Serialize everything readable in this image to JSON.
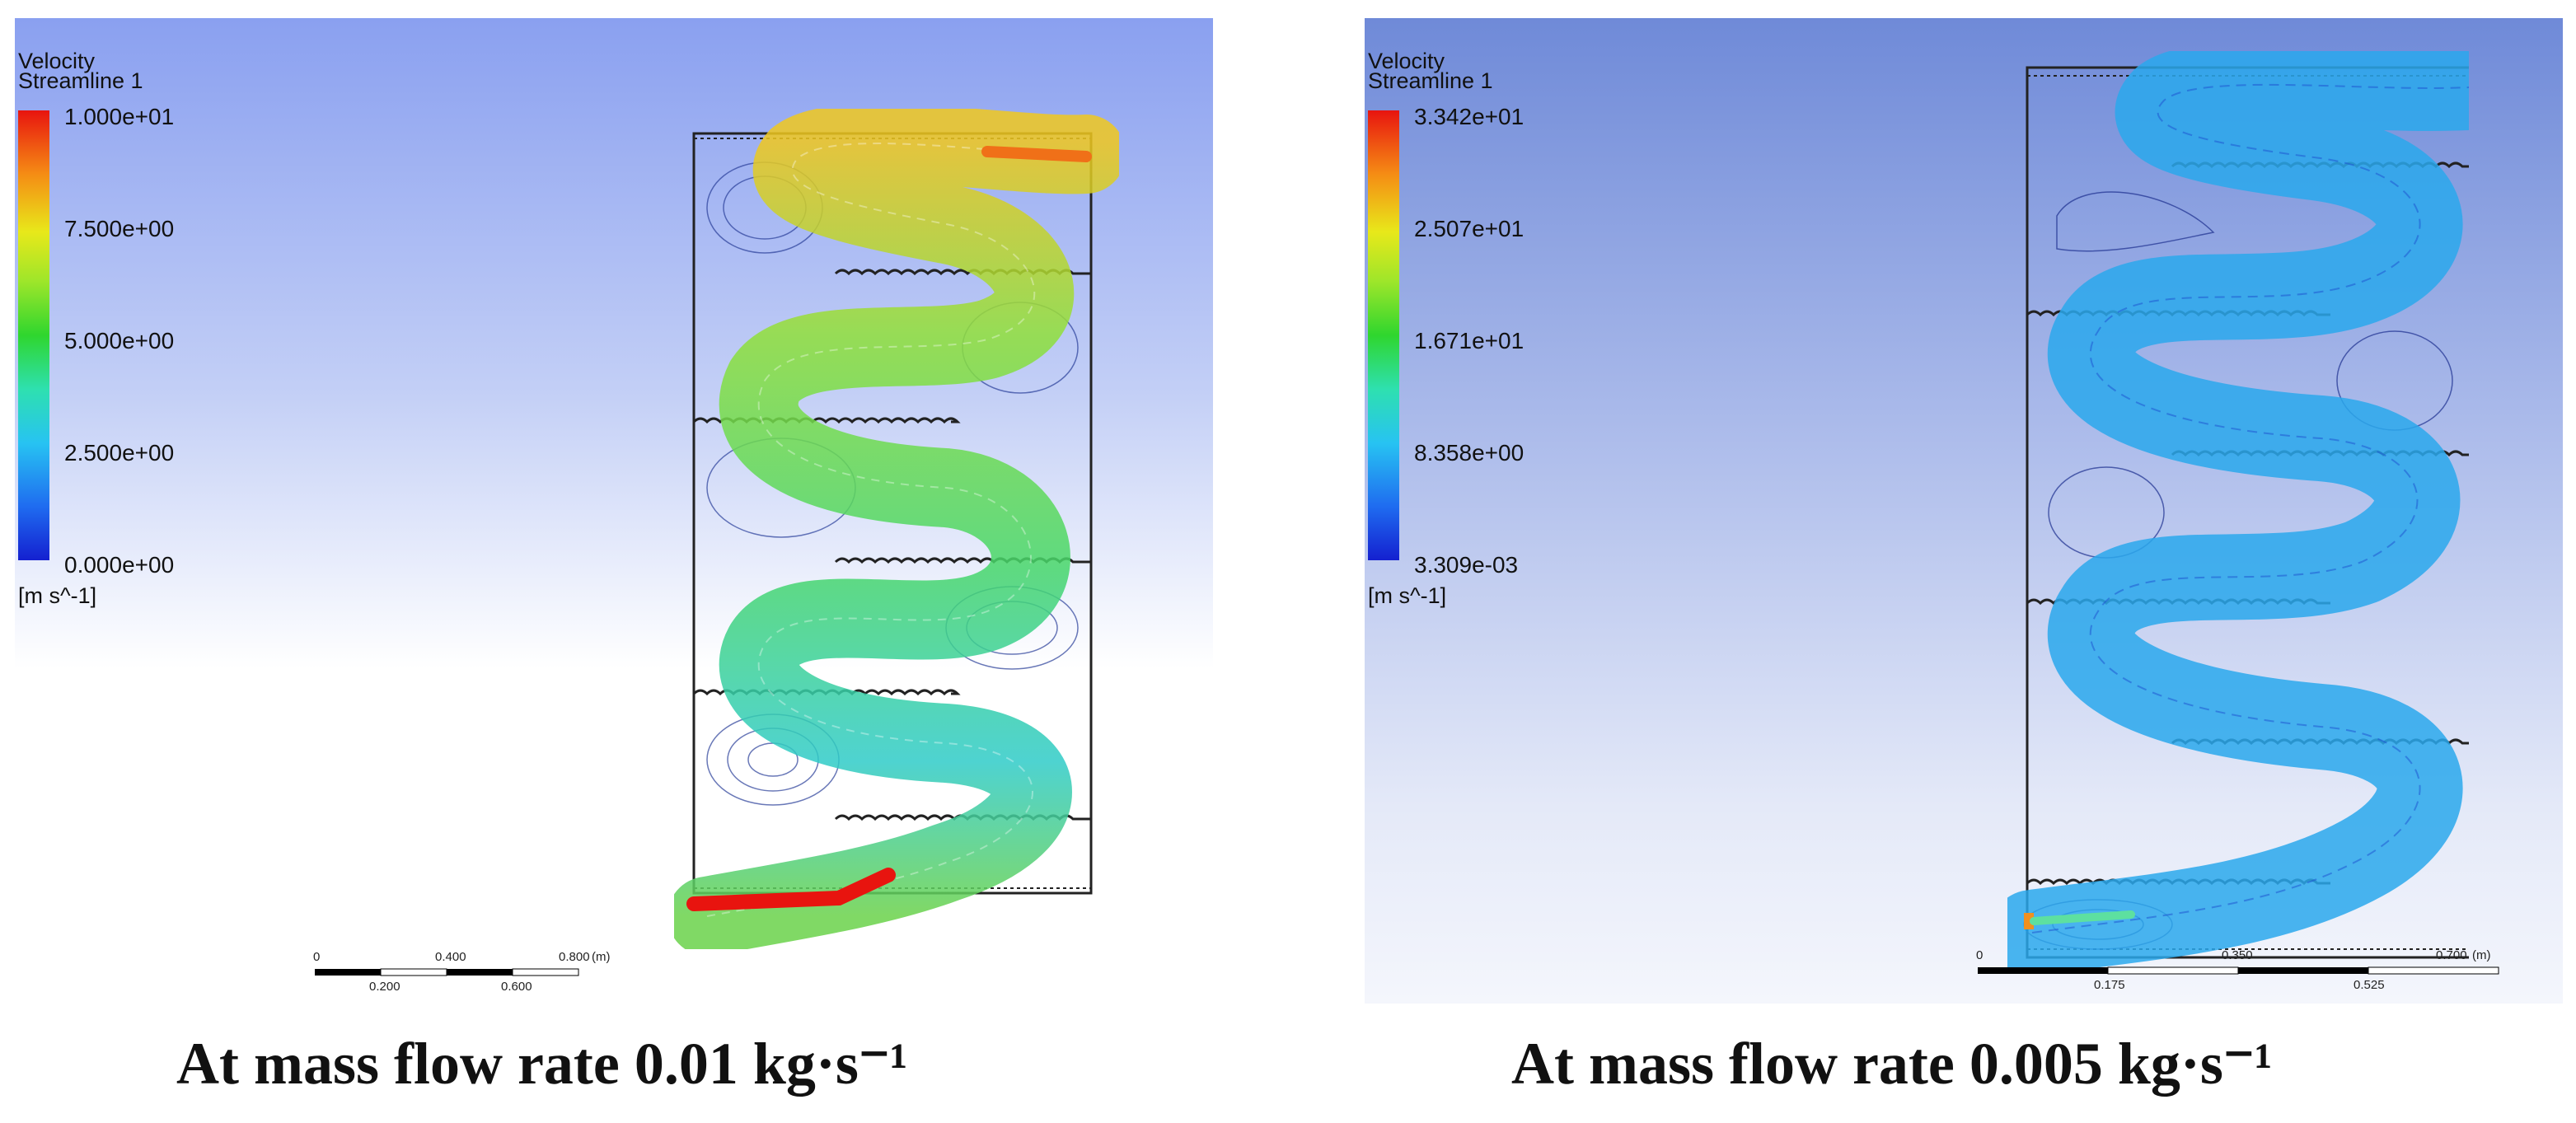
{
  "panels": [
    {
      "legend": {
        "title1": "Velocity",
        "title2": "Streamline 1",
        "units": "[m s^-1]"
      },
      "ticks": [
        "1.000e+01",
        "7.500e+00",
        "5.000e+00",
        "2.500e+00",
        "0.000e+00"
      ],
      "scale": {
        "top_labels": [
          "0",
          "0.400",
          "0.800",
          "(m)"
        ],
        "bottom_labels": [
          "0.200",
          "0.600"
        ]
      },
      "caption": "At mass flow rate 0.01 kg·s⁻¹"
    },
    {
      "legend": {
        "title1": "Velocity",
        "title2": "Streamline 1",
        "units": "[m s^-1]"
      },
      "ticks": [
        "3.342e+01",
        "2.507e+01",
        "1.671e+01",
        "8.358e+00",
        "3.309e-03"
      ],
      "scale": {
        "top_labels": [
          "0",
          "0.350",
          "0.700",
          "(m)"
        ],
        "bottom_labels": [
          "0.175",
          "0.525"
        ]
      },
      "caption": "At mass flow rate 0.005 kg·s⁻¹"
    }
  ],
  "colors": {
    "scale_bar": "#000000",
    "frame": "#222222"
  }
}
